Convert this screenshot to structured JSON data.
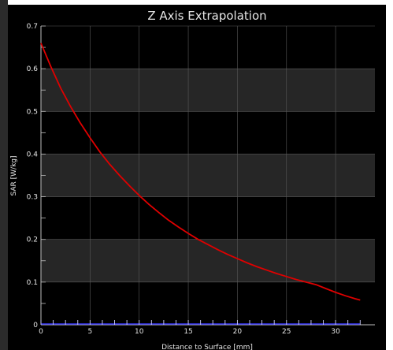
{
  "chart_data": {
    "type": "line",
    "title": "Z Axis Extrapolation",
    "xlabel": "Distance to Surface [mm]",
    "ylabel": "SAR [W/kg]",
    "xlim": [
      0,
      34
    ],
    "ylim": [
      0,
      0.7
    ],
    "xticks": [
      "0",
      "5",
      "10",
      "15",
      "20",
      "25",
      "30"
    ],
    "yticks": [
      "0",
      "0.1",
      "0.2",
      "0.3",
      "0.4",
      "0.5",
      "0.6",
      "0.7"
    ],
    "grid": true,
    "series": [
      {
        "color": "#e00000",
        "x": [
          0,
          1,
          2,
          3,
          4,
          5,
          6,
          7,
          8,
          9,
          10,
          11,
          12,
          13,
          14,
          15,
          16,
          17,
          18,
          19,
          20,
          21,
          22,
          23,
          24,
          25,
          26,
          27,
          28,
          29,
          30,
          31,
          32,
          32.5
        ],
        "y": [
          0.66,
          0.605,
          0.555,
          0.512,
          0.473,
          0.438,
          0.405,
          0.376,
          0.35,
          0.326,
          0.303,
          0.282,
          0.263,
          0.245,
          0.229,
          0.214,
          0.2,
          0.188,
          0.176,
          0.165,
          0.155,
          0.145,
          0.136,
          0.128,
          0.12,
          0.113,
          0.106,
          0.1,
          0.094,
          0.085,
          0.076,
          0.068,
          0.061,
          0.058
        ]
      }
    ],
    "measurement_points_x": [
      0,
      1.25,
      2.5,
      3.75,
      5,
      6.25,
      7.5,
      8.75,
      10,
      11.25,
      12.5,
      13.75,
      15,
      16.25,
      17.5,
      18.75,
      20,
      21.25,
      22.5,
      23.75,
      25,
      26.25,
      27.5,
      28.75,
      30,
      31.25,
      32.5
    ],
    "colors": {
      "background": "#000000",
      "band": "#262626",
      "grid": "#5a5a5a",
      "axis": "#bfbfbf",
      "text": "#e6e6e6",
      "curve": "#e00000",
      "marker": "#3a3aff"
    }
  }
}
